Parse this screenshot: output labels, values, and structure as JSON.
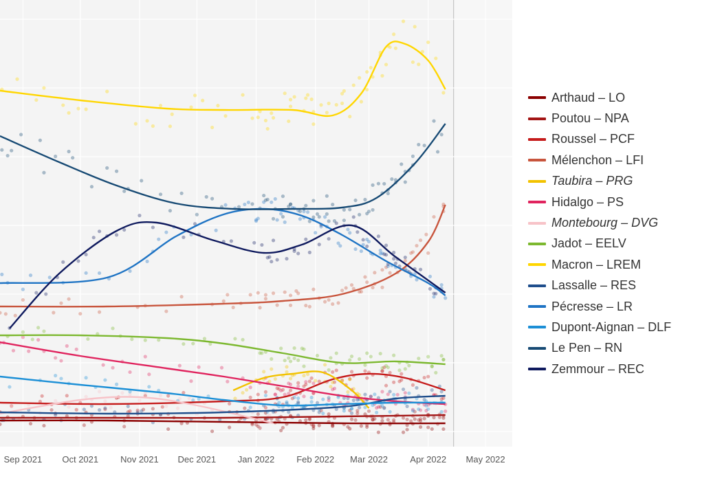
{
  "chart_data": {
    "type": "scatter",
    "x_axis": {
      "type": "date",
      "min": "2021-08-20",
      "max": "2022-05-15",
      "tick_labels": [
        "Sep 2021",
        "Oct 2021",
        "Nov 2021",
        "Dec 2021",
        "Jan 2022",
        "Feb 2022",
        "Mar 2022",
        "Apr 2022",
        "May 2022"
      ],
      "tick_dates": [
        "2021-09-01",
        "2021-10-01",
        "2021-11-01",
        "2021-12-01",
        "2022-01-01",
        "2022-02-01",
        "2022-03-01",
        "2022-04-01",
        "2022-05-01"
      ]
    },
    "y_axis": {
      "min": 0,
      "max": 30,
      "tick_labels": []
    },
    "shaded_period_end": "2022-04-10",
    "grid": true,
    "legend_position": "right",
    "series": [
      {
        "name": "Arthaud – LO",
        "color": "#8b0000",
        "italic": false,
        "trend": [
          [
            "2021-08-20",
            0.8
          ],
          [
            "2021-10-15",
            0.8
          ],
          [
            "2021-12-15",
            0.7
          ],
          [
            "2022-02-15",
            0.6
          ],
          [
            "2022-04-10",
            0.6
          ]
        ]
      },
      {
        "name": "Poutou – NPA",
        "color": "#a31515",
        "italic": false,
        "trend": [
          [
            "2021-08-20",
            1.0
          ],
          [
            "2021-10-15",
            1.0
          ],
          [
            "2021-12-15",
            1.0
          ],
          [
            "2022-02-15",
            1.1
          ],
          [
            "2022-04-10",
            1.2
          ]
        ]
      },
      {
        "name": "Roussel – PCF",
        "color": "#c51b1b",
        "italic": false,
        "trend": [
          [
            "2021-08-20",
            2.1
          ],
          [
            "2021-10-15",
            2.0
          ],
          [
            "2021-12-15",
            2.2
          ],
          [
            "2022-01-15",
            2.5
          ],
          [
            "2022-02-10",
            3.8
          ],
          [
            "2022-03-01",
            4.2
          ],
          [
            "2022-03-20",
            3.9
          ],
          [
            "2022-04-10",
            3.0
          ]
        ]
      },
      {
        "name": "Mélenchon – LFI",
        "color": "#c8553d",
        "italic": false,
        "trend": [
          [
            "2021-08-20",
            9.1
          ],
          [
            "2021-10-15",
            9.1
          ],
          [
            "2021-12-15",
            9.3
          ],
          [
            "2022-01-15",
            9.5
          ],
          [
            "2022-02-15",
            10.0
          ],
          [
            "2022-03-15",
            11.5
          ],
          [
            "2022-04-01",
            13.8
          ],
          [
            "2022-04-10",
            16.5
          ]
        ]
      },
      {
        "name": "Taubira – PRG",
        "color": "#f2c200",
        "italic": true,
        "trend": [
          [
            "2021-12-20",
            3.0
          ],
          [
            "2022-01-05",
            3.9
          ],
          [
            "2022-01-20",
            4.2
          ],
          [
            "2022-02-05",
            4.3
          ],
          [
            "2022-02-20",
            3.0
          ],
          [
            "2022-03-01",
            1.7
          ]
        ]
      },
      {
        "name": "Hidalgo – PS",
        "color": "#e0245e",
        "italic": false,
        "trend": [
          [
            "2021-08-20",
            6.5
          ],
          [
            "2021-10-01",
            5.5
          ],
          [
            "2021-11-15",
            4.6
          ],
          [
            "2021-12-15",
            4.0
          ],
          [
            "2022-01-15",
            3.3
          ],
          [
            "2022-02-15",
            2.6
          ],
          [
            "2022-03-15",
            2.2
          ],
          [
            "2022-04-10",
            2.0
          ]
        ]
      },
      {
        "name": "Montebourg – DVG",
        "color": "#f7c3c8",
        "italic": true,
        "trend": [
          [
            "2021-08-20",
            1.3
          ],
          [
            "2021-10-01",
            2.3
          ],
          [
            "2021-11-01",
            2.5
          ],
          [
            "2021-12-01",
            1.9
          ],
          [
            "2022-01-10",
            0.6
          ]
        ]
      },
      {
        "name": "Jadot – EELV",
        "color": "#7cb82f",
        "italic": false,
        "trend": [
          [
            "2021-08-20",
            7.0
          ],
          [
            "2021-10-01",
            7.0
          ],
          [
            "2021-11-15",
            6.8
          ],
          [
            "2021-12-15",
            6.4
          ],
          [
            "2022-01-15",
            5.7
          ],
          [
            "2022-02-15",
            5.0
          ],
          [
            "2022-03-15",
            5.1
          ],
          [
            "2022-04-10",
            4.9
          ]
        ]
      },
      {
        "name": "Macron – LREM",
        "color": "#ffd600",
        "italic": false,
        "trend": [
          [
            "2021-08-20",
            24.8
          ],
          [
            "2021-10-01",
            24.1
          ],
          [
            "2021-11-15",
            23.5
          ],
          [
            "2021-12-15",
            23.4
          ],
          [
            "2022-01-20",
            23.4
          ],
          [
            "2022-02-10",
            23.0
          ],
          [
            "2022-02-25",
            24.6
          ],
          [
            "2022-03-10",
            28.0
          ],
          [
            "2022-03-20",
            28.2
          ],
          [
            "2022-04-01",
            27.0
          ],
          [
            "2022-04-10",
            24.9
          ]
        ]
      },
      {
        "name": "Lassalle – RES",
        "color": "#1f4e8c",
        "italic": false,
        "trend": [
          [
            "2021-08-20",
            1.4
          ],
          [
            "2021-10-15",
            1.3
          ],
          [
            "2021-12-15",
            1.4
          ],
          [
            "2022-02-15",
            1.8
          ],
          [
            "2022-03-15",
            2.4
          ],
          [
            "2022-04-10",
            2.6
          ]
        ]
      },
      {
        "name": "Pécresse – LR",
        "color": "#1f74c4",
        "italic": false,
        "trend": [
          [
            "2021-08-20",
            10.8
          ],
          [
            "2021-10-15",
            11.2
          ],
          [
            "2021-11-20",
            14.2
          ],
          [
            "2021-12-15",
            15.8
          ],
          [
            "2022-01-05",
            16.2
          ],
          [
            "2022-01-25",
            15.7
          ],
          [
            "2022-02-15",
            14.3
          ],
          [
            "2022-03-10",
            12.4
          ],
          [
            "2022-04-01",
            10.8
          ],
          [
            "2022-04-10",
            9.9
          ]
        ]
      },
      {
        "name": "Dupont-Aignan – DLF",
        "color": "#1c8fd6",
        "italic": false,
        "trend": [
          [
            "2021-08-20",
            4.0
          ],
          [
            "2021-10-01",
            3.4
          ],
          [
            "2021-11-15",
            2.8
          ],
          [
            "2021-12-15",
            2.3
          ],
          [
            "2022-01-15",
            1.9
          ],
          [
            "2022-02-15",
            2.0
          ],
          [
            "2022-03-15",
            2.1
          ],
          [
            "2022-04-10",
            2.1
          ]
        ]
      },
      {
        "name": "Le Pen – RN",
        "color": "#174a74",
        "italic": false,
        "trend": [
          [
            "2021-08-20",
            21.5
          ],
          [
            "2021-09-20",
            19.6
          ],
          [
            "2021-10-20",
            17.9
          ],
          [
            "2021-11-20",
            16.6
          ],
          [
            "2021-12-20",
            16.2
          ],
          [
            "2022-01-20",
            16.2
          ],
          [
            "2022-02-15",
            16.3
          ],
          [
            "2022-03-05",
            17.0
          ],
          [
            "2022-03-25",
            19.5
          ],
          [
            "2022-04-10",
            22.4
          ]
        ]
      },
      {
        "name": "Zemmour – REC",
        "color": "#0f1a5e",
        "italic": false,
        "trend": [
          [
            "2021-08-25",
            7.5
          ],
          [
            "2021-09-20",
            11.5
          ],
          [
            "2021-10-20",
            14.6
          ],
          [
            "2021-11-10",
            15.2
          ],
          [
            "2021-12-10",
            13.9
          ],
          [
            "2022-01-05",
            13.0
          ],
          [
            "2022-01-25",
            13.6
          ],
          [
            "2022-02-20",
            15.0
          ],
          [
            "2022-03-15",
            12.7
          ],
          [
            "2022-04-10",
            10.1
          ]
        ]
      }
    ]
  }
}
